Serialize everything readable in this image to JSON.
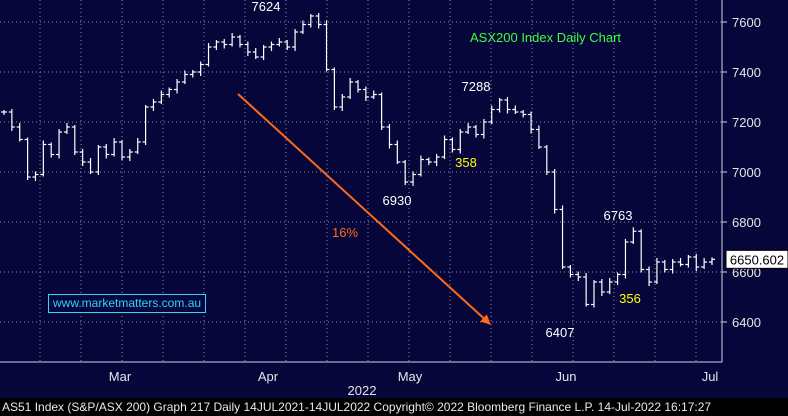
{
  "chart_data": {
    "type": "line",
    "style": "OHLC bars",
    "title": "ASX200 Index Daily Chart",
    "xlabel": "2022",
    "x_ticks": [
      "Mar",
      "Apr",
      "May",
      "Jun",
      "Jul"
    ],
    "y_ticks": [
      6400,
      6600,
      6800,
      7000,
      7200,
      7400,
      7600
    ],
    "ylim": [
      6300,
      7650
    ],
    "grid": true,
    "axis_side": "right",
    "last_value_label": "6650.602",
    "colors": {
      "background": "#06063a",
      "bars": "#ffffff",
      "grid": "#8a8fb0",
      "arrow": "#ff6a1a",
      "title": "#3cff3c",
      "highlight": "#ffff00",
      "watermark": "#2fd4ff"
    },
    "series": [
      {
        "values": [
          7240,
          7180,
          7130,
          6980,
          6990,
          7110,
          7070,
          7160,
          7180,
          7080,
          7040,
          7000,
          7100,
          7070,
          7120,
          7060,
          7080,
          7120,
          7260,
          7280,
          7310,
          7330,
          7360,
          7390,
          7400,
          7430,
          7500,
          7520,
          7510,
          7540,
          7510,
          7480,
          7460,
          7500,
          7510,
          7520,
          7500,
          7560,
          7590,
          7624,
          7590,
          7410,
          7260,
          7300,
          7360,
          7330,
          7300,
          7310,
          7180,
          7110,
          7040,
          6960,
          6990,
          7050,
          7040,
          7060,
          7130,
          7090,
          7160,
          7180,
          7150,
          7200,
          7250,
          7288,
          7250,
          7240,
          7230,
          7170,
          7100,
          7000,
          6850,
          6620,
          6590,
          6580,
          6470,
          6560,
          6520,
          6560,
          6590,
          6720,
          6763,
          6610,
          6560,
          6640,
          6610,
          6640,
          6630,
          6660,
          6620,
          6640,
          6650.602
        ]
      }
    ],
    "annotations": [
      {
        "text": "7624",
        "color": "#ffffff"
      },
      {
        "text": "7288",
        "color": "#ffffff"
      },
      {
        "text": "6930",
        "color": "#ffffff"
      },
      {
        "text": "6763",
        "color": "#ffffff"
      },
      {
        "text": "6407",
        "color": "#ffffff"
      },
      {
        "text": "358",
        "color": "#ffff00"
      },
      {
        "text": "356",
        "color": "#ffff00"
      },
      {
        "text": "16%",
        "color": "#ff6a1a"
      }
    ]
  },
  "watermark": "www.marketmatters.com.au",
  "footer": "AS51 Index (S&P/ASX 200) Graph 217  Daily 14JUL2021-14JUL2022 Copyright© 2022 Bloomberg Finance L.P. 14-Jul-2022 16:17:27"
}
